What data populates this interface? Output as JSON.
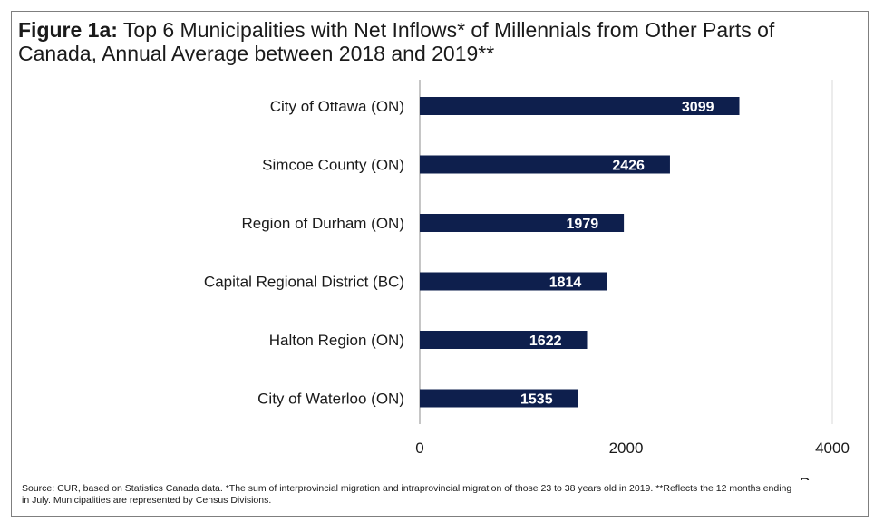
{
  "title": {
    "prefix": "Figure 1a:",
    "text": "Top 6 Municipalities with Net Inflows* of Millennials from Other Parts of Canada, Annual Average between 2018 and 2019**"
  },
  "source_note": "Source: CUR, based on Statistics Canada data. *The sum of interprovincial migration and intraprovincial migration of those 23 to 38 years old in 2019. **Reflects the 12 months ending in July. Municipalities are represented by Census Divisions.",
  "colors": {
    "bar": "#0e1f4d",
    "grid": "#d9d9d9",
    "axis": "#8c8c8c",
    "label_on_bar": "#ffffff"
  },
  "chart_data": {
    "type": "bar",
    "orientation": "horizontal",
    "categories": [
      "City of Ottawa (ON)",
      "Simcoe County (ON)",
      "Region of Durham (ON)",
      "Capital Regional District (BC)",
      "Halton Region (ON)",
      "City of Waterloo (ON)"
    ],
    "values": [
      3099,
      2426,
      1979,
      1814,
      1622,
      1535
    ],
    "xlabel": "Persons",
    "xlim": [
      0,
      4000
    ],
    "xticks": [
      0,
      2000,
      4000
    ],
    "grid": true,
    "data_labels": true
  }
}
